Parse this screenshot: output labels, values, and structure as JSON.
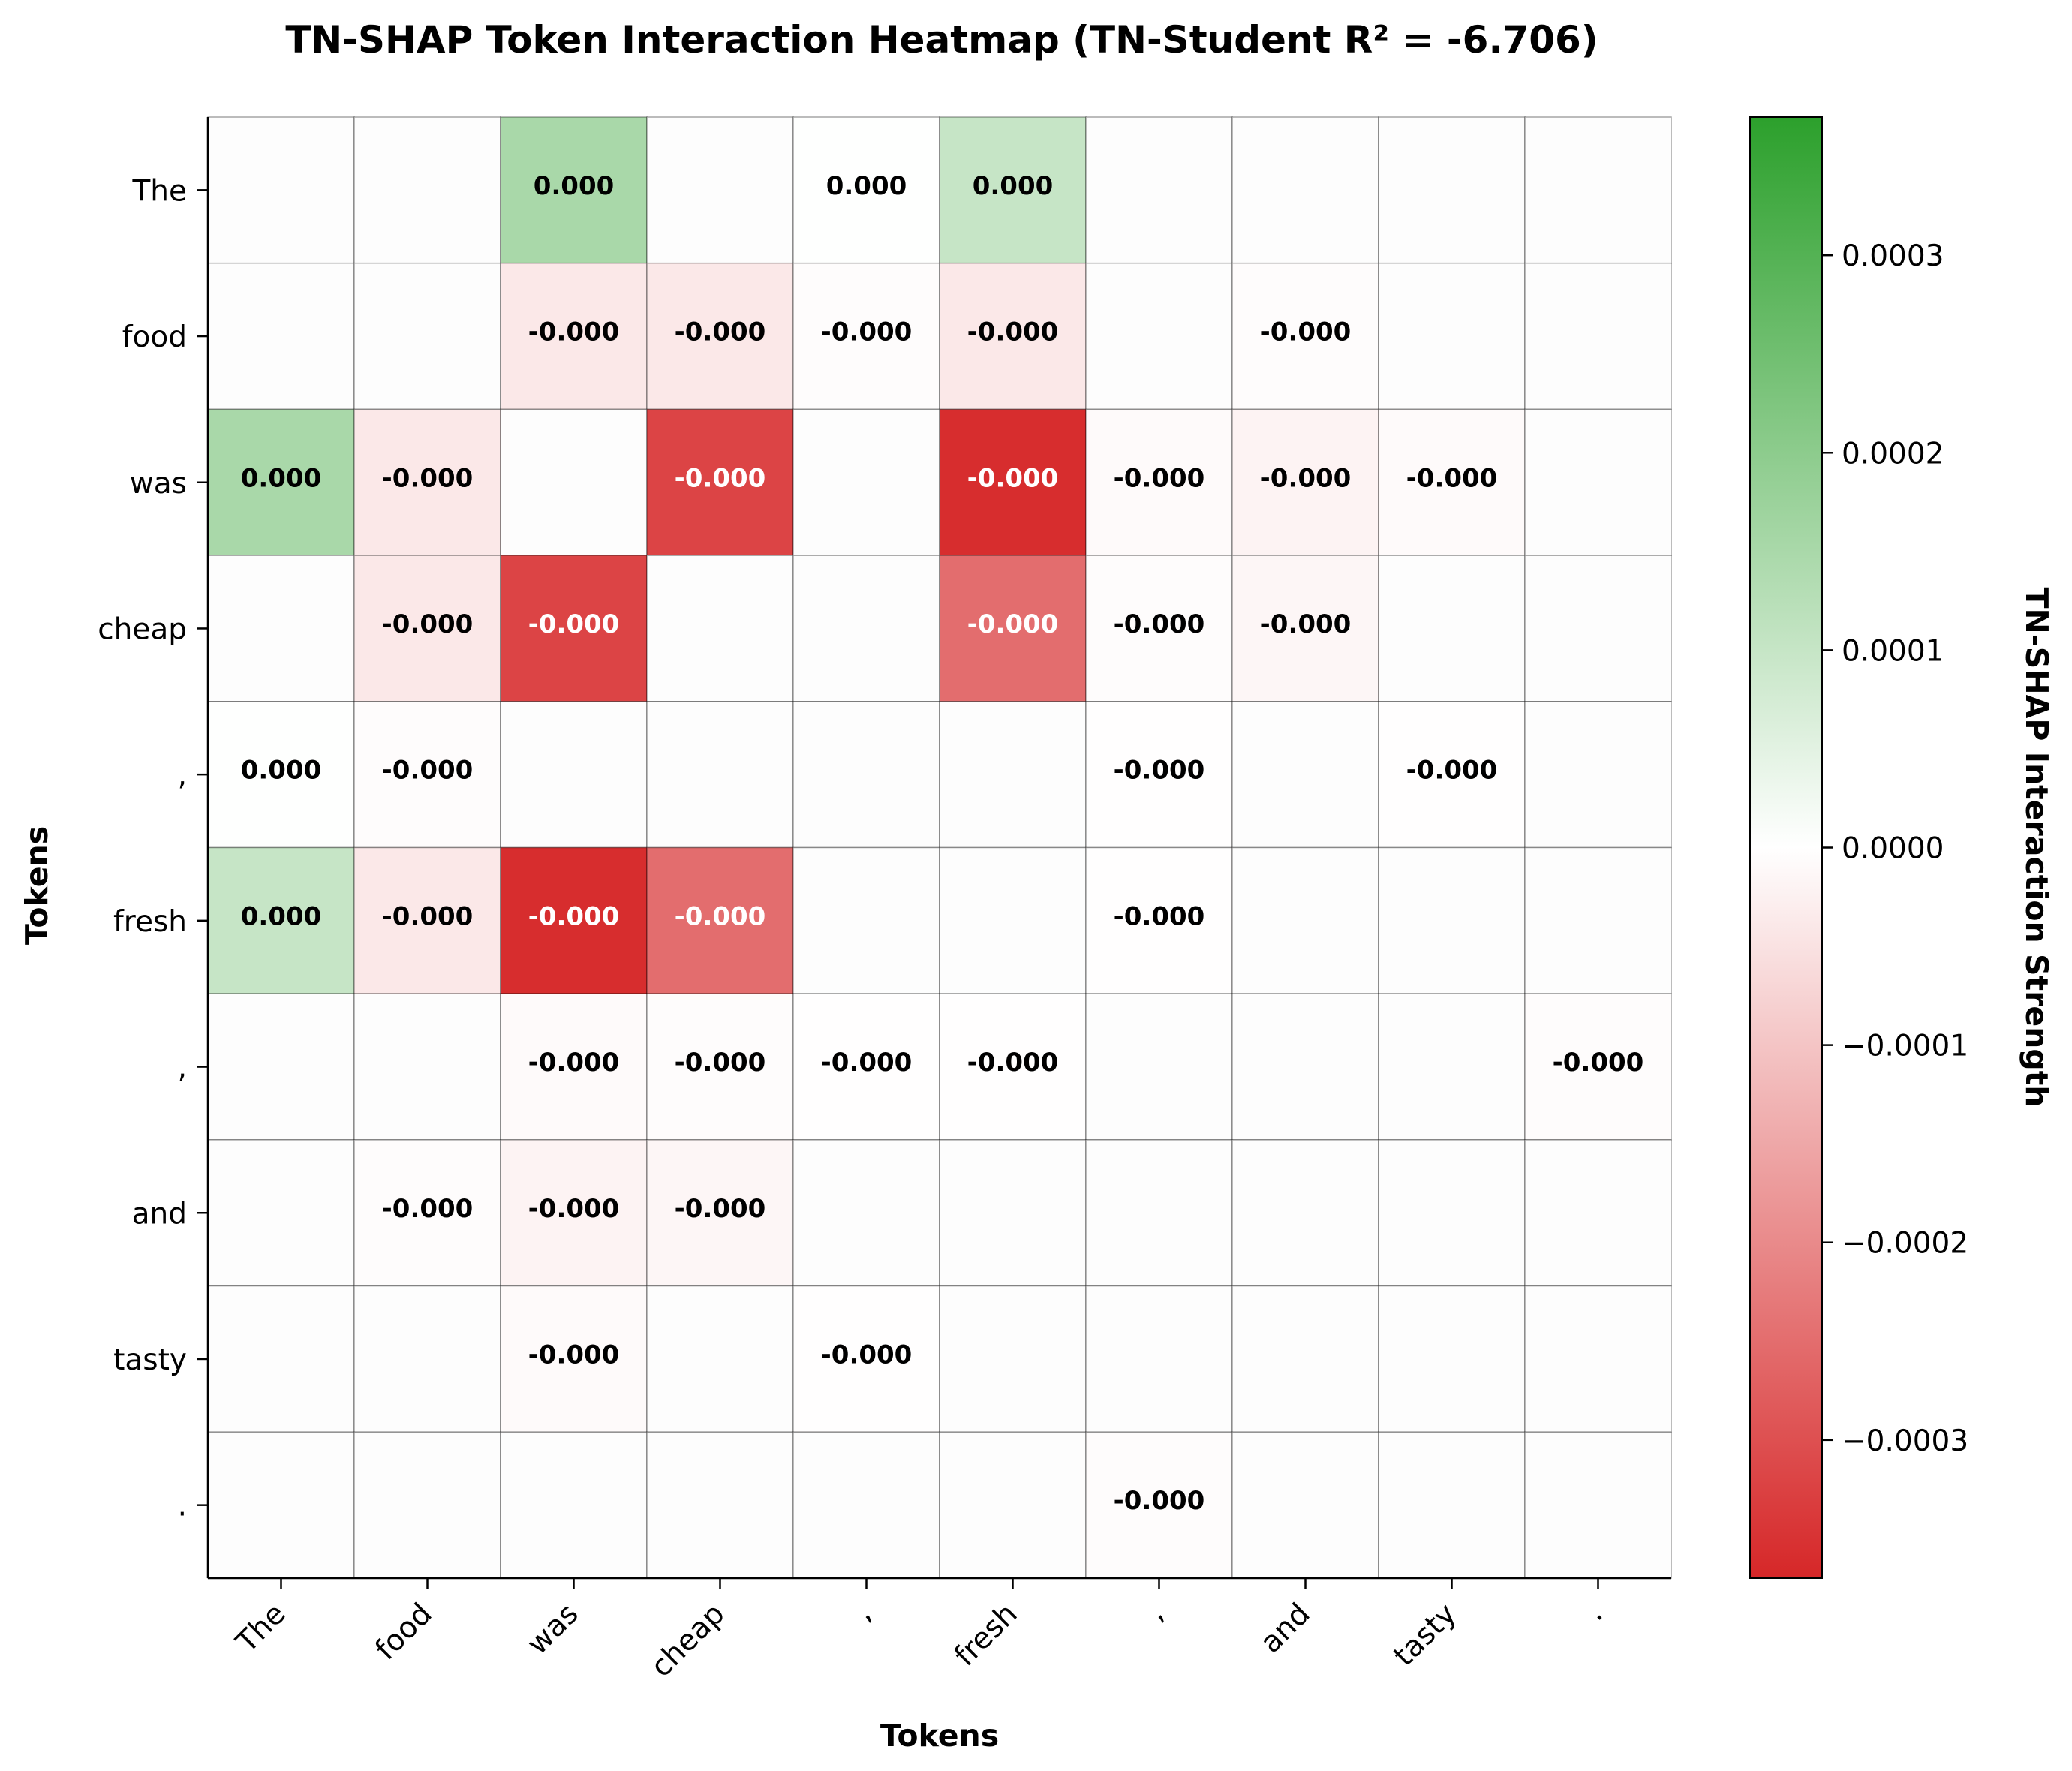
{
  "chart_data": {
    "type": "heatmap",
    "title": "TN-SHAP Token Interaction Heatmap (TN-Student R² = -6.706)",
    "xlabel": "Tokens",
    "ylabel": "Tokens",
    "x_tokens": [
      "The",
      "food",
      "was",
      "cheap",
      ",",
      "fresh",
      ",",
      "and",
      "tasty",
      "."
    ],
    "y_tokens": [
      "The",
      "food",
      "was",
      "cheap",
      ",",
      "fresh",
      ",",
      "and",
      "tasty",
      "."
    ],
    "values": [
      [
        null,
        null,
        0.00015,
        null,
        1e-06,
        0.0001,
        null,
        null,
        null,
        null
      ],
      [
        null,
        null,
        -4e-05,
        -4e-05,
        -5e-06,
        -4e-05,
        null,
        -5e-06,
        null,
        null
      ],
      [
        0.00015,
        -4e-05,
        null,
        -0.00032,
        null,
        -0.00036,
        -8e-06,
        -2e-05,
        -8e-06,
        null
      ],
      [
        null,
        -4e-05,
        -0.00032,
        null,
        null,
        -0.00025,
        -5e-06,
        -1.5e-05,
        null,
        null
      ],
      [
        1e-06,
        -5e-06,
        null,
        null,
        null,
        null,
        -2e-06,
        null,
        -2e-06,
        null
      ],
      [
        0.0001,
        -4e-05,
        -0.00036,
        -0.00025,
        null,
        null,
        -2e-06,
        null,
        null,
        null
      ],
      [
        null,
        null,
        -8e-06,
        -5e-06,
        -2e-06,
        -2e-06,
        null,
        null,
        null,
        -5e-06
      ],
      [
        null,
        -5e-06,
        -2e-05,
        -1.5e-05,
        null,
        null,
        null,
        null,
        null,
        null
      ],
      [
        null,
        null,
        -8e-06,
        null,
        -2e-06,
        null,
        null,
        null,
        null,
        null
      ],
      [
        null,
        null,
        null,
        null,
        null,
        null,
        -5e-06,
        null,
        null,
        null
      ]
    ],
    "cell_labels": [
      [
        "",
        "",
        "0.000",
        "",
        "0.000",
        "0.000",
        "",
        "",
        "",
        ""
      ],
      [
        "",
        "",
        "-0.000",
        "-0.000",
        "-0.000",
        "-0.000",
        "",
        "-0.000",
        "",
        ""
      ],
      [
        "0.000",
        "-0.000",
        "",
        "-0.000",
        "",
        "-0.000",
        "-0.000",
        "-0.000",
        "-0.000",
        ""
      ],
      [
        "",
        "-0.000",
        "-0.000",
        "",
        "",
        "-0.000",
        "-0.000",
        "-0.000",
        "",
        ""
      ],
      [
        "0.000",
        "-0.000",
        "",
        "",
        "",
        "",
        "-0.000",
        "",
        "-0.000",
        ""
      ],
      [
        "0.000",
        "-0.000",
        "-0.000",
        "-0.000",
        "",
        "",
        "-0.000",
        "",
        "",
        ""
      ],
      [
        "",
        "",
        "-0.000",
        "-0.000",
        "-0.000",
        "-0.000",
        "",
        "",
        "",
        "-0.000"
      ],
      [
        "",
        "-0.000",
        "-0.000",
        "-0.000",
        "",
        "",
        "",
        "",
        "",
        ""
      ],
      [
        "",
        "",
        "-0.000",
        "",
        "-0.000",
        "",
        "",
        "",
        "",
        ""
      ],
      [
        "",
        "",
        "",
        "",
        "",
        "",
        "-0.000",
        "",
        "",
        ""
      ]
    ],
    "colorbar": {
      "label": "TN-SHAP Interaction Strength",
      "range": [
        -0.00037,
        0.00037
      ],
      "ticks": [
        0.0003,
        0.0002,
        0.0001,
        0.0,
        -0.0001,
        -0.0002,
        -0.0003
      ],
      "tick_labels": [
        "0.0003",
        "0.0002",
        "0.0001",
        "0.0000",
        "−0.0001",
        "−0.0002",
        "−0.0003"
      ],
      "colors": {
        "negative": "#d62728",
        "zero": "#ffffff",
        "positive": "#2ca02c"
      }
    },
    "grid": true
  }
}
